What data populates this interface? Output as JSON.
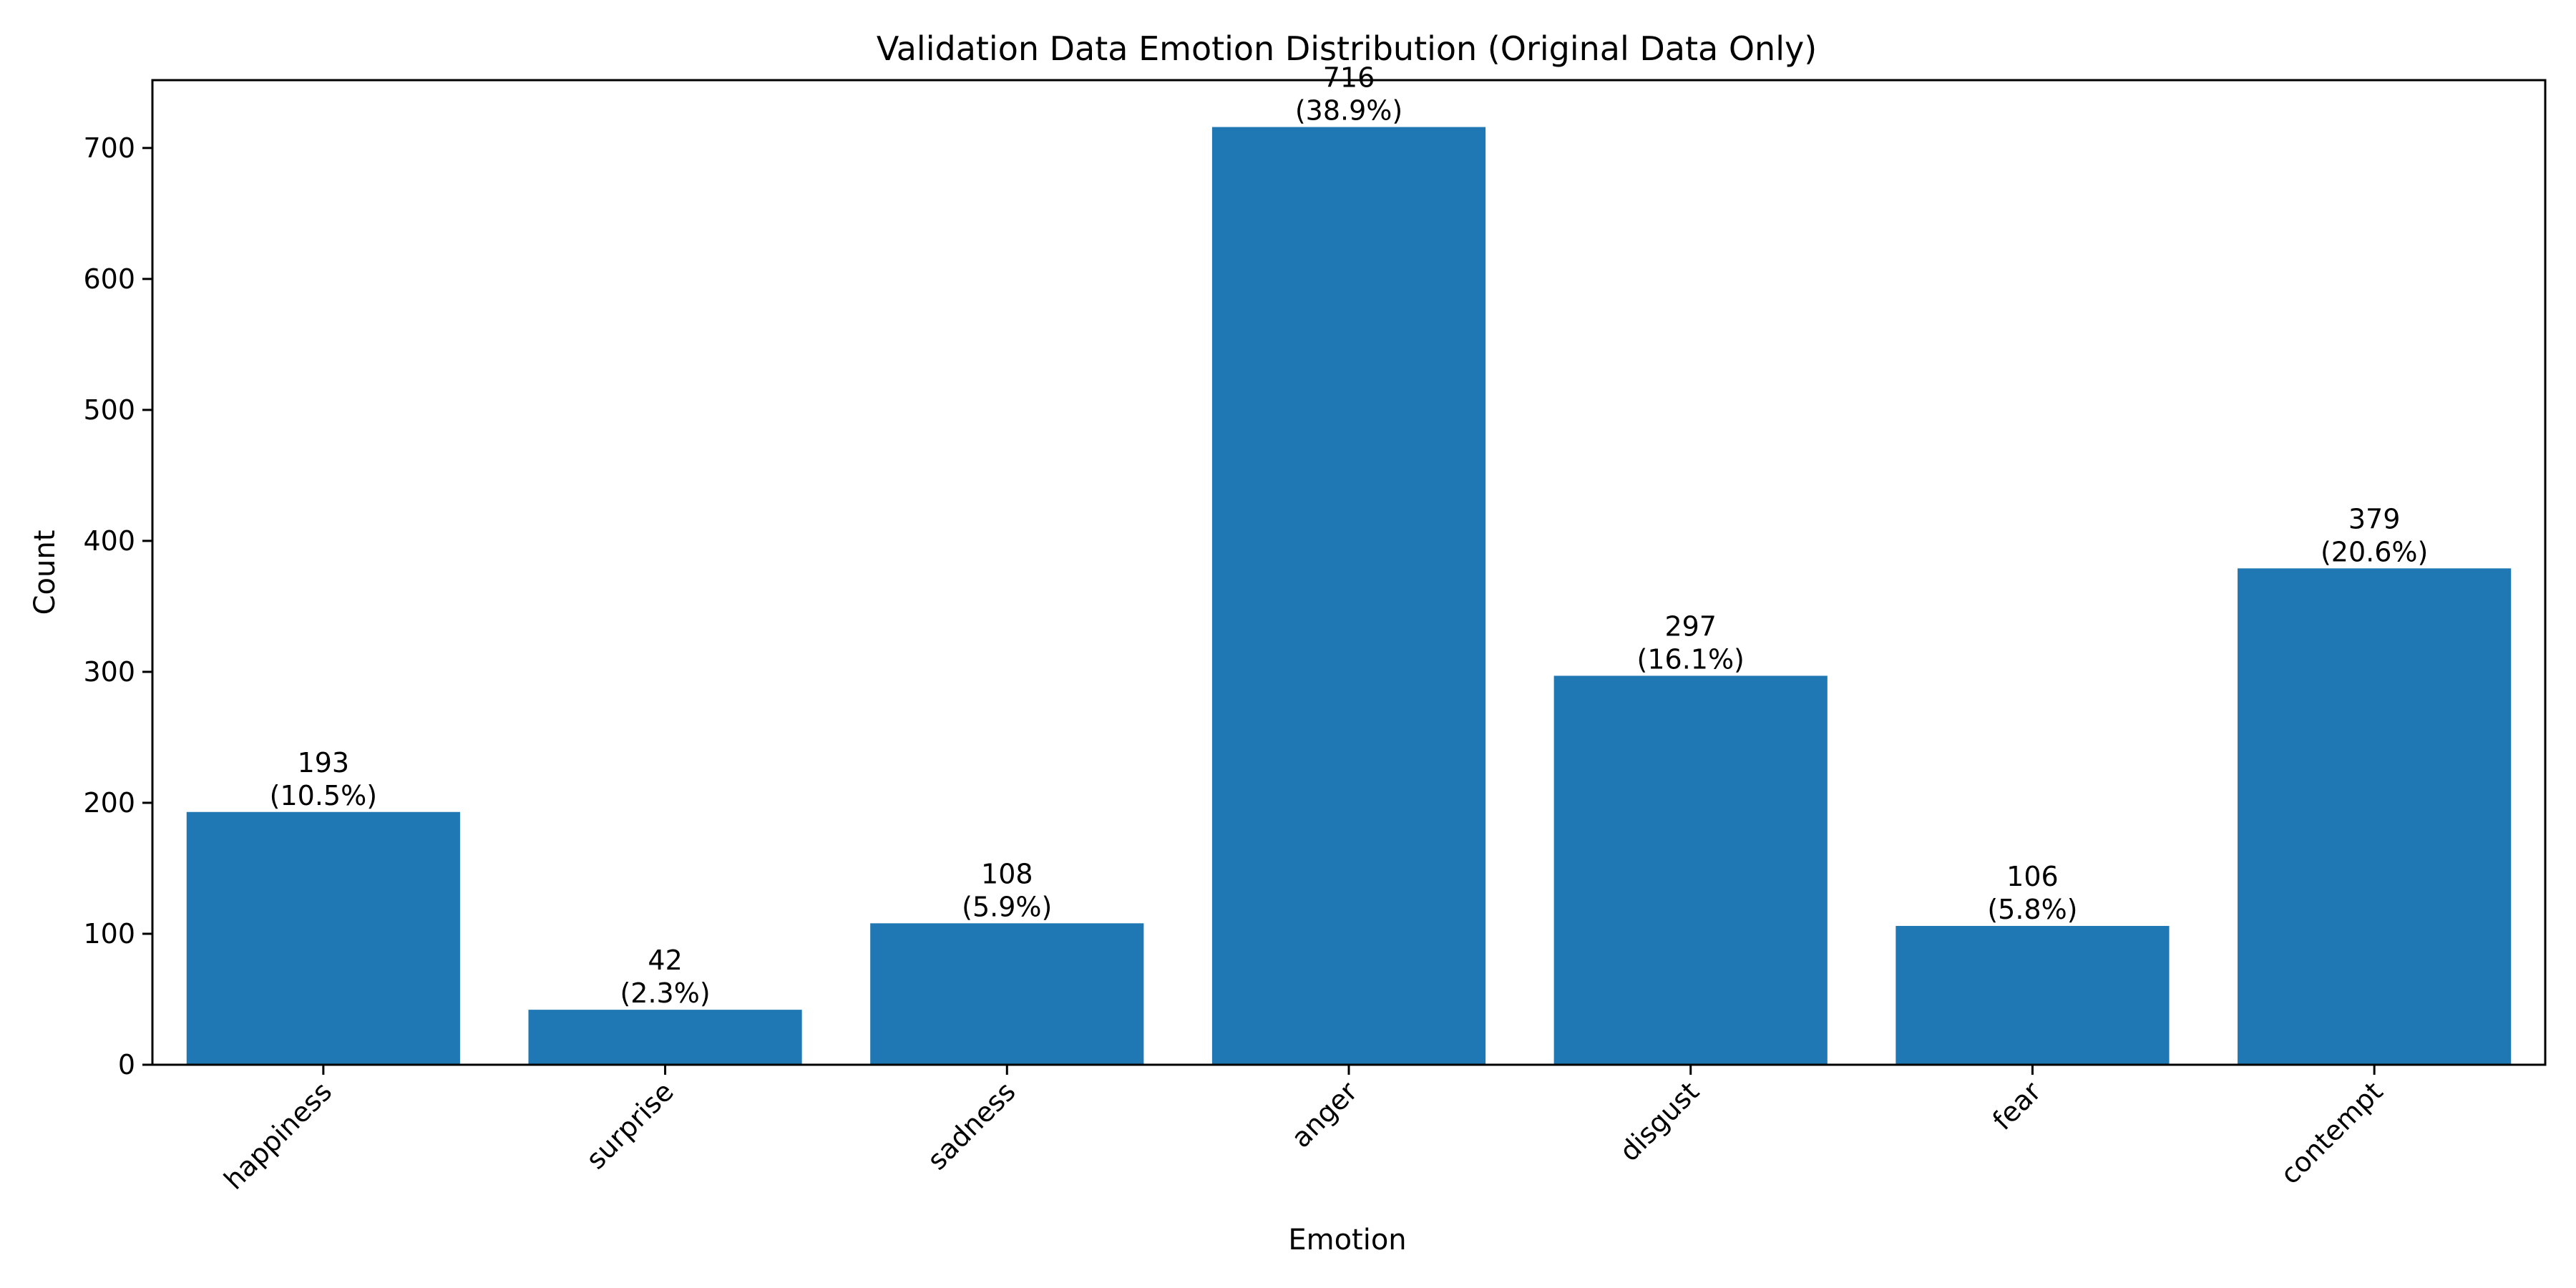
{
  "chart_data": {
    "type": "bar",
    "title": "Validation Data Emotion Distribution (Original Data Only)",
    "xlabel": "Emotion",
    "ylabel": "Count",
    "categories": [
      "happiness",
      "surprise",
      "sadness",
      "anger",
      "disgust",
      "fear",
      "contempt"
    ],
    "values": [
      193,
      42,
      108,
      716,
      297,
      106,
      379
    ],
    "percent_labels": [
      "(10.5%)",
      "(2.3%)",
      "(5.9%)",
      "(38.9%)",
      "(16.1%)",
      "(5.8%)",
      "(20.6%)"
    ],
    "ylim": [
      0,
      751.8
    ],
    "yticks": [
      0,
      100,
      200,
      300,
      400,
      500,
      600,
      700
    ],
    "bar_color": "#1f77b4",
    "grid": false,
    "legend": "none",
    "xtick_rotation_deg": 45
  }
}
